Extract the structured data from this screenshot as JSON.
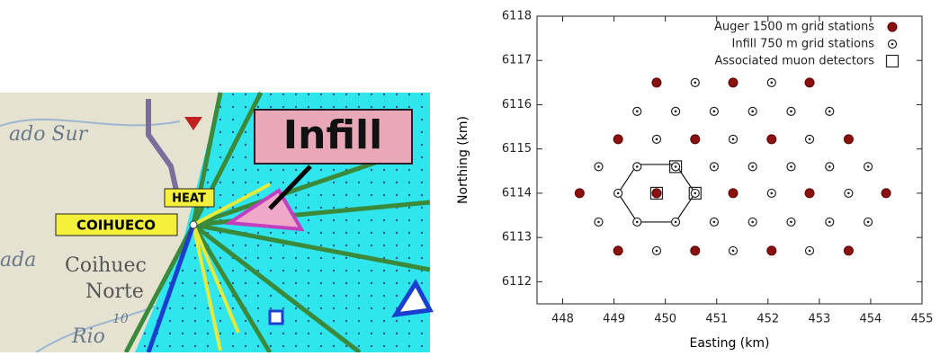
{
  "map": {
    "infill_label": "Infill",
    "heat_label": "HEAT",
    "coihueco_label": "COIHUECO",
    "place_names": [
      "ado Sur",
      "ada",
      "Coihuec",
      "Norte",
      "Rio",
      "10"
    ]
  },
  "chart_data": {
    "type": "scatter",
    "x_label": "Easting (km)",
    "y_label": "Northing (km)",
    "xlim": [
      447.5,
      455
    ],
    "xticks": [
      448,
      449,
      450,
      451,
      452,
      453,
      454,
      455
    ],
    "ylim": [
      6111.5,
      6118
    ],
    "yticks": [
      6112,
      6113,
      6114,
      6115,
      6116,
      6117,
      6118
    ],
    "legend": "top-right",
    "series": [
      {
        "name": "Auger 1500 m grid stations",
        "color": "#8b1010",
        "marker": "filled-circle",
        "x": [
          449.83,
          451.32,
          452.81,
          449.08,
          450.58,
          452.07,
          453.57,
          448.33,
          449.83,
          451.32,
          452.81,
          454.3,
          449.08,
          450.58,
          452.07,
          453.57
        ],
        "y": [
          6116.5,
          6116.5,
          6116.5,
          6115.22,
          6115.22,
          6115.22,
          6115.22,
          6114,
          6114,
          6114,
          6114,
          6114,
          6112.7,
          6112.7,
          6112.7,
          6112.7
        ]
      },
      {
        "name": "Infill 750 m grid stations",
        "color": "#222222",
        "marker": "open-circle",
        "x": [
          450.58,
          452.07,
          449.45,
          450.2,
          450.95,
          451.7,
          452.45,
          453.2,
          449.83,
          451.32,
          452.81,
          448.7,
          449.45,
          450.2,
          450.95,
          451.7,
          452.45,
          453.2,
          453.95,
          449.08,
          450.58,
          452.07,
          453.57,
          448.7,
          449.45,
          450.2,
          450.95,
          451.7,
          452.45,
          453.2,
          453.95,
          449.83,
          451.32,
          452.81
        ],
        "y": [
          6116.5,
          6116.5,
          6115.85,
          6115.85,
          6115.85,
          6115.85,
          6115.85,
          6115.85,
          6115.22,
          6115.22,
          6115.22,
          6114.6,
          6114.6,
          6114.6,
          6114.6,
          6114.6,
          6114.6,
          6114.6,
          6114.6,
          6114,
          6114,
          6114,
          6114,
          6113.35,
          6113.35,
          6113.35,
          6113.35,
          6113.35,
          6113.35,
          6113.35,
          6113.35,
          6112.7,
          6112.7,
          6112.7
        ]
      },
      {
        "name": "Associated muon detectors",
        "color": "#222222",
        "marker": "open-square",
        "x": [
          450.2,
          449.83,
          450.58
        ],
        "y": [
          6114.6,
          6114,
          6114
        ]
      }
    ],
    "outline": {
      "x": [
        449.08,
        449.45,
        450.2,
        450.58,
        450.2,
        449.45,
        449.08
      ],
      "y": [
        6114,
        6114.65,
        6114.65,
        6114,
        6113.35,
        6113.35,
        6114
      ]
    }
  }
}
